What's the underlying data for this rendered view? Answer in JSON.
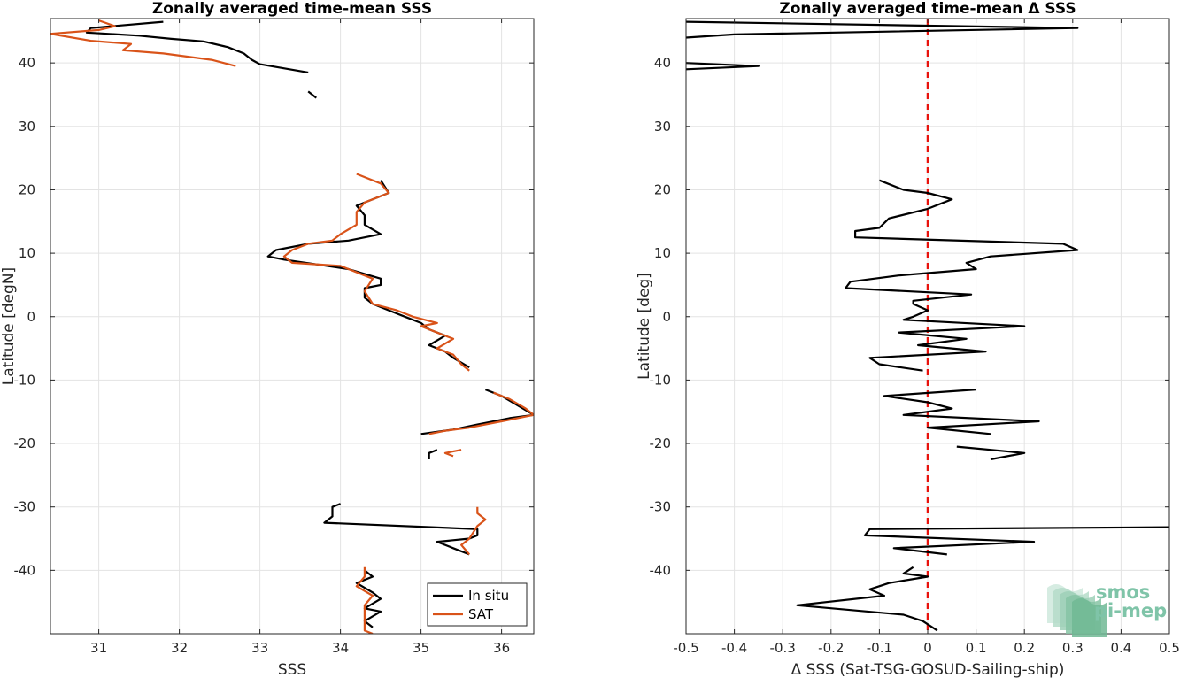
{
  "chart_data": [
    {
      "type": "line",
      "title": "Zonally averaged time-mean SSS",
      "xlabel": "SSS",
      "ylabel": "Latitude [degN]",
      "xlim": [
        30.4,
        36.4
      ],
      "ylim": [
        -50,
        47
      ],
      "xticks": [
        31,
        32,
        33,
        34,
        35,
        36
      ],
      "yticks": [
        -40,
        -30,
        -20,
        -10,
        0,
        10,
        20,
        30,
        40
      ],
      "grid": true,
      "legend_position": "bottom-right",
      "colors": {
        "In situ": "#000000",
        "SAT": "#D95319"
      },
      "series": [
        {
          "name": "In situ",
          "segments": [
            [
              [
                31.8,
                46.5
              ],
              [
                30.9,
                45.5
              ],
              [
                30.85,
                44.8
              ],
              [
                31.5,
                44.3
              ],
              [
                31.9,
                43.8
              ],
              [
                32.3,
                43.4
              ],
              [
                32.6,
                42.5
              ],
              [
                32.8,
                41.5
              ],
              [
                32.9,
                40.5
              ],
              [
                33.0,
                39.8
              ],
              [
                33.6,
                38.5
              ]
            ],
            [
              [
                33.6,
                35.5
              ],
              [
                33.7,
                34.5
              ]
            ],
            [
              [
                34.5,
                21.5
              ],
              [
                34.6,
                19.5
              ],
              [
                34.2,
                17.5
              ],
              [
                34.3,
                16.0
              ],
              [
                34.3,
                14.5
              ],
              [
                34.5,
                13.0
              ],
              [
                34.1,
                12.0
              ],
              [
                33.6,
                11.5
              ],
              [
                33.2,
                10.5
              ],
              [
                33.1,
                9.5
              ],
              [
                33.3,
                9.0
              ],
              [
                34.1,
                7.5
              ],
              [
                34.5,
                6.0
              ],
              [
                34.5,
                5.0
              ],
              [
                34.3,
                4.5
              ],
              [
                34.3,
                3.0
              ],
              [
                34.4,
                2.0
              ],
              [
                34.6,
                1.0
              ],
              [
                34.8,
                0.0
              ],
              [
                35.0,
                -1.0
              ],
              [
                35.1,
                -2.0
              ],
              [
                35.3,
                -3.0
              ],
              [
                35.1,
                -4.5
              ],
              [
                35.3,
                -5.5
              ],
              [
                35.4,
                -6.5
              ],
              [
                35.6,
                -8.0
              ]
            ],
            [
              [
                35.8,
                -11.5
              ],
              [
                36.0,
                -12.5
              ],
              [
                36.2,
                -14.0
              ],
              [
                36.4,
                -15.5
              ],
              [
                36.1,
                -16.0
              ],
              [
                35.7,
                -17.0
              ],
              [
                35.4,
                -17.8
              ],
              [
                35.0,
                -18.5
              ]
            ],
            [
              [
                35.2,
                -21.0
              ],
              [
                35.1,
                -21.5
              ],
              [
                35.1,
                -22.5
              ]
            ],
            [
              [
                34.0,
                -29.5
              ],
              [
                33.9,
                -30.0
              ],
              [
                33.9,
                -31.5
              ],
              [
                33.8,
                -32.5
              ],
              [
                35.7,
                -33.5
              ],
              [
                35.7,
                -34.5
              ],
              [
                35.6,
                -35.0
              ],
              [
                35.2,
                -35.5
              ],
              [
                35.4,
                -36.5
              ],
              [
                35.6,
                -37.5
              ]
            ],
            [
              [
                34.3,
                -40.0
              ],
              [
                34.4,
                -41.0
              ],
              [
                34.2,
                -42.0
              ],
              [
                34.4,
                -43.5
              ],
              [
                34.5,
                -44.5
              ],
              [
                34.3,
                -46.0
              ],
              [
                34.5,
                -46.5
              ],
              [
                34.3,
                -48.0
              ],
              [
                34.4,
                -49.0
              ]
            ]
          ]
        },
        {
          "name": "SAT",
          "segments": [
            [
              [
                31.0,
                46.7
              ],
              [
                31.2,
                45.8
              ],
              [
                31.0,
                45.2
              ],
              [
                30.4,
                44.6
              ],
              [
                30.9,
                43.5
              ],
              [
                31.4,
                43.0
              ],
              [
                31.3,
                42.0
              ],
              [
                31.8,
                41.5
              ],
              [
                32.4,
                40.5
              ],
              [
                32.7,
                39.5
              ]
            ],
            [
              [
                34.2,
                22.5
              ],
              [
                34.5,
                21.0
              ],
              [
                34.6,
                19.5
              ],
              [
                34.3,
                18.0
              ],
              [
                34.2,
                16.5
              ],
              [
                34.2,
                14.5
              ],
              [
                34.0,
                13.0
              ],
              [
                33.9,
                12.0
              ],
              [
                33.6,
                11.5
              ],
              [
                33.4,
                10.5
              ],
              [
                33.3,
                9.5
              ],
              [
                33.4,
                8.5
              ],
              [
                34.0,
                8.0
              ],
              [
                34.4,
                6.0
              ],
              [
                34.3,
                4.0
              ],
              [
                34.4,
                2.0
              ],
              [
                34.7,
                1.0
              ],
              [
                34.9,
                0.0
              ],
              [
                35.2,
                -1.0
              ],
              [
                35.0,
                -1.5
              ],
              [
                35.2,
                -2.5
              ],
              [
                35.4,
                -3.5
              ],
              [
                35.2,
                -5.0
              ],
              [
                35.4,
                -6.0
              ],
              [
                35.5,
                -7.5
              ],
              [
                35.6,
                -8.5
              ]
            ],
            [
              [
                35.9,
                -12.0
              ],
              [
                36.1,
                -13.0
              ],
              [
                36.3,
                -14.5
              ],
              [
                36.4,
                -15.5
              ],
              [
                36.0,
                -16.5
              ],
              [
                35.6,
                -17.5
              ],
              [
                35.3,
                -18.0
              ],
              [
                35.1,
                -18.5
              ]
            ],
            [
              [
                35.5,
                -21.0
              ],
              [
                35.3,
                -21.5
              ],
              [
                35.4,
                -22.0
              ]
            ],
            [
              [
                35.7,
                -30.0
              ],
              [
                35.7,
                -31.0
              ],
              [
                35.8,
                -32.0
              ],
              [
                35.7,
                -33.0
              ],
              [
                35.6,
                -35.0
              ],
              [
                35.5,
                -36.0
              ],
              [
                35.6,
                -37.5
              ]
            ],
            [
              [
                34.3,
                -39.5
              ],
              [
                34.3,
                -41.0
              ],
              [
                34.2,
                -42.5
              ],
              [
                34.4,
                -44.0
              ],
              [
                34.3,
                -45.5
              ],
              [
                34.3,
                -47.5
              ],
              [
                34.3,
                -49.5
              ],
              [
                34.4,
                -50.0
              ]
            ]
          ]
        }
      ],
      "legend": [
        "In situ",
        "SAT"
      ]
    },
    {
      "type": "line",
      "title": "Zonally averaged time-mean Δ SSS",
      "xlabel": "Δ SSS (Sat-TSG-GOSUD-Sailing-ship)",
      "ylabel": "Latitude [deg]",
      "xlim": [
        -0.5,
        0.5
      ],
      "ylim": [
        -50,
        47
      ],
      "xticks": [
        -0.5,
        -0.4,
        -0.3,
        -0.2,
        -0.1,
        0,
        0.1,
        0.2,
        0.3,
        0.4,
        0.5
      ],
      "yticks": [
        -40,
        -30,
        -20,
        -10,
        0,
        10,
        20,
        30,
        40
      ],
      "grid": true,
      "reference_line": {
        "x": 0,
        "style": "dashed",
        "color": "#E8120C"
      },
      "series": [
        {
          "name": "",
          "segments": [
            [
              [
                -0.5,
                46.5
              ],
              [
                0.31,
                45.5
              ],
              [
                -0.4,
                44.5
              ],
              [
                -0.5,
                44.0
              ]
            ],
            [
              [
                -0.5,
                40.0
              ],
              [
                -0.35,
                39.5
              ],
              [
                -0.5,
                39.0
              ]
            ],
            [
              [
                -0.1,
                21.5
              ],
              [
                -0.05,
                20.0
              ],
              [
                0.0,
                19.5
              ],
              [
                0.05,
                18.5
              ],
              [
                0.0,
                17.0
              ],
              [
                -0.08,
                15.5
              ],
              [
                -0.1,
                14.0
              ],
              [
                -0.15,
                13.5
              ],
              [
                -0.15,
                12.5
              ],
              [
                0.28,
                11.5
              ],
              [
                0.31,
                10.5
              ],
              [
                0.13,
                9.5
              ],
              [
                0.08,
                8.5
              ],
              [
                0.1,
                7.5
              ],
              [
                -0.06,
                6.5
              ],
              [
                -0.16,
                5.5
              ],
              [
                -0.17,
                4.5
              ],
              [
                0.09,
                3.5
              ],
              [
                -0.03,
                2.5
              ],
              [
                -0.03,
                2.0
              ],
              [
                0.0,
                1.0
              ],
              [
                -0.03,
                0.0
              ],
              [
                -0.05,
                -0.5
              ],
              [
                0.2,
                -1.5
              ],
              [
                -0.06,
                -2.5
              ],
              [
                0.08,
                -3.5
              ],
              [
                -0.02,
                -4.5
              ],
              [
                0.05,
                -5.0
              ],
              [
                0.12,
                -5.5
              ],
              [
                -0.12,
                -6.5
              ],
              [
                -0.1,
                -7.5
              ],
              [
                -0.01,
                -8.5
              ]
            ],
            [
              [
                0.1,
                -11.5
              ],
              [
                -0.09,
                -12.5
              ],
              [
                0.0,
                -13.5
              ],
              [
                0.05,
                -14.5
              ],
              [
                -0.05,
                -15.5
              ],
              [
                0.23,
                -16.5
              ],
              [
                0.0,
                -17.5
              ],
              [
                0.13,
                -18.5
              ]
            ],
            [
              [
                0.06,
                -20.5
              ],
              [
                0.2,
                -21.5
              ],
              [
                0.13,
                -22.5
              ]
            ],
            [
              [
                0.5,
                -33.2
              ],
              [
                -0.12,
                -33.5
              ],
              [
                -0.13,
                -34.5
              ],
              [
                0.22,
                -35.5
              ],
              [
                -0.07,
                -36.5
              ],
              [
                0.04,
                -37.5
              ]
            ],
            [
              [
                -0.03,
                -39.5
              ],
              [
                -0.05,
                -40.5
              ],
              [
                0.0,
                -41.0
              ],
              [
                -0.08,
                -42.0
              ],
              [
                -0.12,
                -43.0
              ],
              [
                -0.09,
                -44.0
              ],
              [
                -0.27,
                -45.5
              ],
              [
                -0.05,
                -47.0
              ],
              [
                -0.01,
                -48.0
              ],
              [
                0.02,
                -49.5
              ]
            ]
          ]
        }
      ]
    }
  ],
  "logo": {
    "line1": "smos",
    "line2": "pi-mep"
  }
}
